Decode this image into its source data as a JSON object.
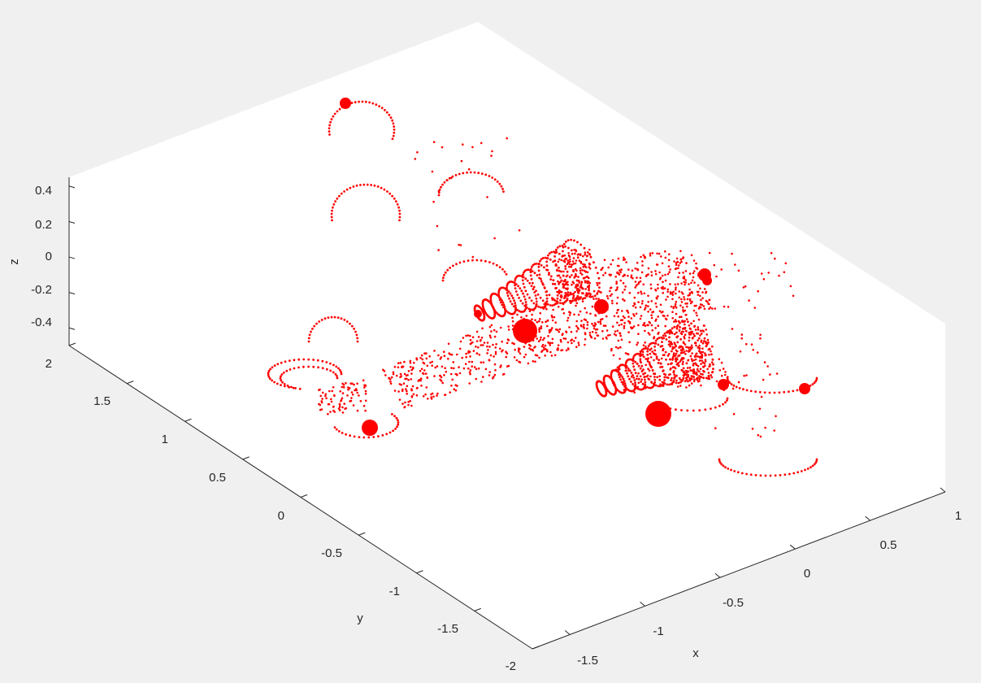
{
  "chart_data": {
    "type": "scatter",
    "subtype": "scatter3d-point-cloud",
    "title": "",
    "xlabel": "x",
    "ylabel": "y",
    "zlabel": "z",
    "xlim": [
      -1.75,
      1.0
    ],
    "ylim": [
      -2.0,
      2.0
    ],
    "zlim": [
      -0.5,
      0.45
    ],
    "xticks": [
      -1.5,
      -1,
      -0.5,
      0,
      0.5,
      1
    ],
    "xtick_labels": [
      "-1.5",
      "-1",
      "-0.5",
      "0",
      "0.5",
      "1"
    ],
    "yticks": [
      -2,
      -1.5,
      -1,
      -0.5,
      0,
      0.5,
      1,
      1.5,
      2
    ],
    "ytick_labels": [
      "-2",
      "-1.5",
      "-1",
      "-0.5",
      "0",
      "0.5",
      "1",
      "1.5",
      "2"
    ],
    "zticks": [
      -0.4,
      -0.2,
      0,
      0.2,
      0.4
    ],
    "ztick_labels": [
      "-0.4",
      "-0.2",
      "0",
      "0.2",
      "0.4"
    ],
    "grid": false,
    "legend": "none",
    "point_color": "#ff0000",
    "axes_background": "#ffffff",
    "figure_background": "#f0f0f0",
    "shape": "propeller aircraft point cloud (fuselage, wings, two engine nacelles, tail, propeller arcs)",
    "point_count_approx": 2500
  }
}
